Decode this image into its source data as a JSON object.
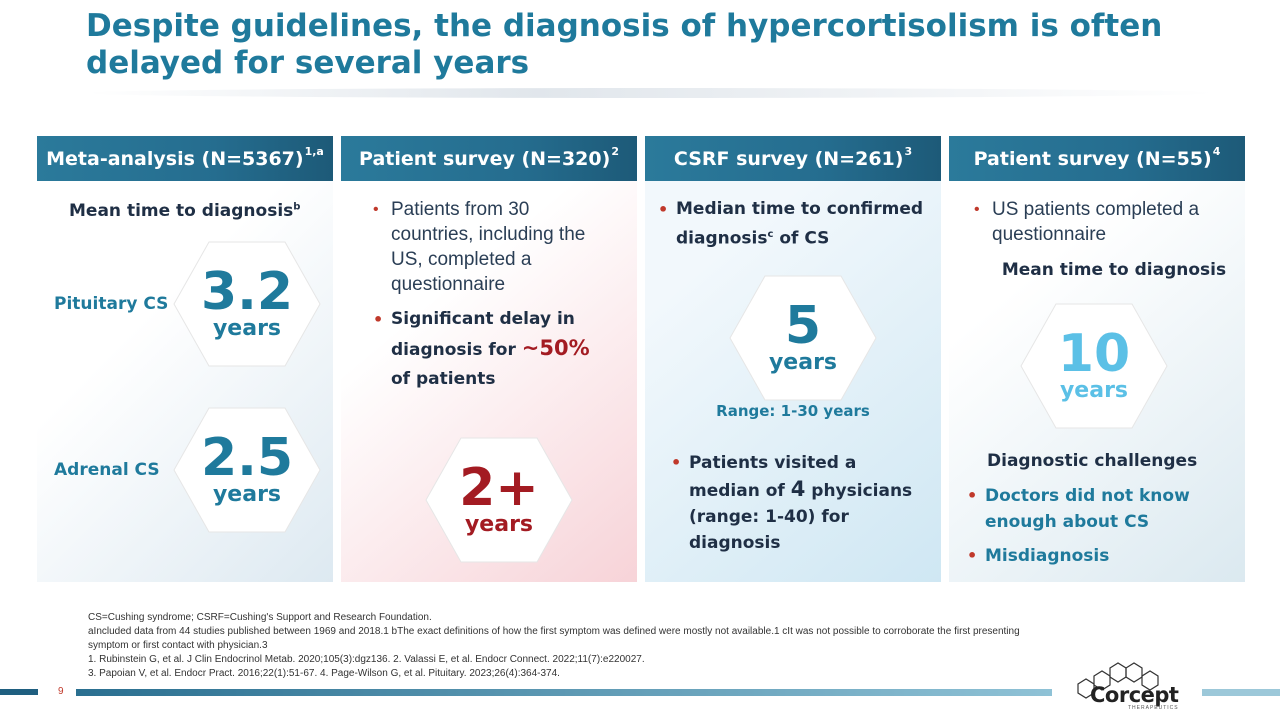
{
  "title": "Despite guidelines, the diagnosis of hypercortisolism is often delayed for several years",
  "panels": [
    {
      "header": "Meta-analysis (N=5367)",
      "header_sup": "1,a",
      "subtitle": "Mean time to diagnosis",
      "subtitle_sup": "b",
      "rows": [
        {
          "label": "Pituitary CS",
          "value": "3.2",
          "unit": "years"
        },
        {
          "label": "Adrenal CS",
          "value": "2.5",
          "unit": "years"
        }
      ]
    },
    {
      "header": "Patient survey (N=320)",
      "header_sup": "2",
      "bullet1": "Patients from 30 countries, including the US, completed a questionnaire",
      "bullet2_pre": "Significant delay in diagnosis for ",
      "bullet2_highlight": "~50%",
      "bullet2_post": " of patients",
      "value": "2+",
      "unit": "years"
    },
    {
      "header": "CSRF survey (N=261)",
      "header_sup": "3",
      "bullet1_pre": "Median time to confirmed diagnosis",
      "bullet1_sup": "c",
      "bullet1_post": " of CS",
      "value": "5",
      "unit": "years",
      "range": "Range: 1-30 years",
      "bullet2_pre": "Patients visited a median of ",
      "bullet2_highlight": "4",
      "bullet2_post": " physicians (range: 1-40) for diagnosis"
    },
    {
      "header": "Patient survey (N=55)",
      "header_sup": "4",
      "bullet1": "US patients completed a questionnaire",
      "subtitle": "Mean time to diagnosis",
      "value": "10",
      "unit": "years",
      "challenges_title": "Diagnostic challenges",
      "challenges": [
        "Doctors did not know enough about CS",
        "Misdiagnosis"
      ]
    }
  ],
  "footnotes": {
    "line1": "CS=Cushing syndrome; CSRF=Cushing's Support and Research Foundation.",
    "line2": "aIncluded data from 44 studies published between 1969 and 2018.1 bThe exact definitions of how the first symptom was defined were mostly not available.1 cIt was not possible to corroborate the first presenting symptom or first contact with physician.3",
    "line3": "1. Rubinstein G, et al. J Clin Endocrinol Metab. 2020;105(3):dgz136. 2. Valassi E, et al. Endocr Connect. 2022;11(7):e220027.",
    "line4": "3. Papoian V, et al. Endocr Pract. 2016;22(1):51-67. 4. Page-Wilson G, et al. Pituitary. 2023;26(4):364-374."
  },
  "page_number": "9",
  "logo": {
    "name": "Corcept",
    "tagline": "THERAPEUTICS"
  },
  "colors": {
    "teal": "#1f7a9c",
    "header": "#256d8f",
    "red": "#a31b22",
    "light_blue": "#5bc0e6"
  }
}
